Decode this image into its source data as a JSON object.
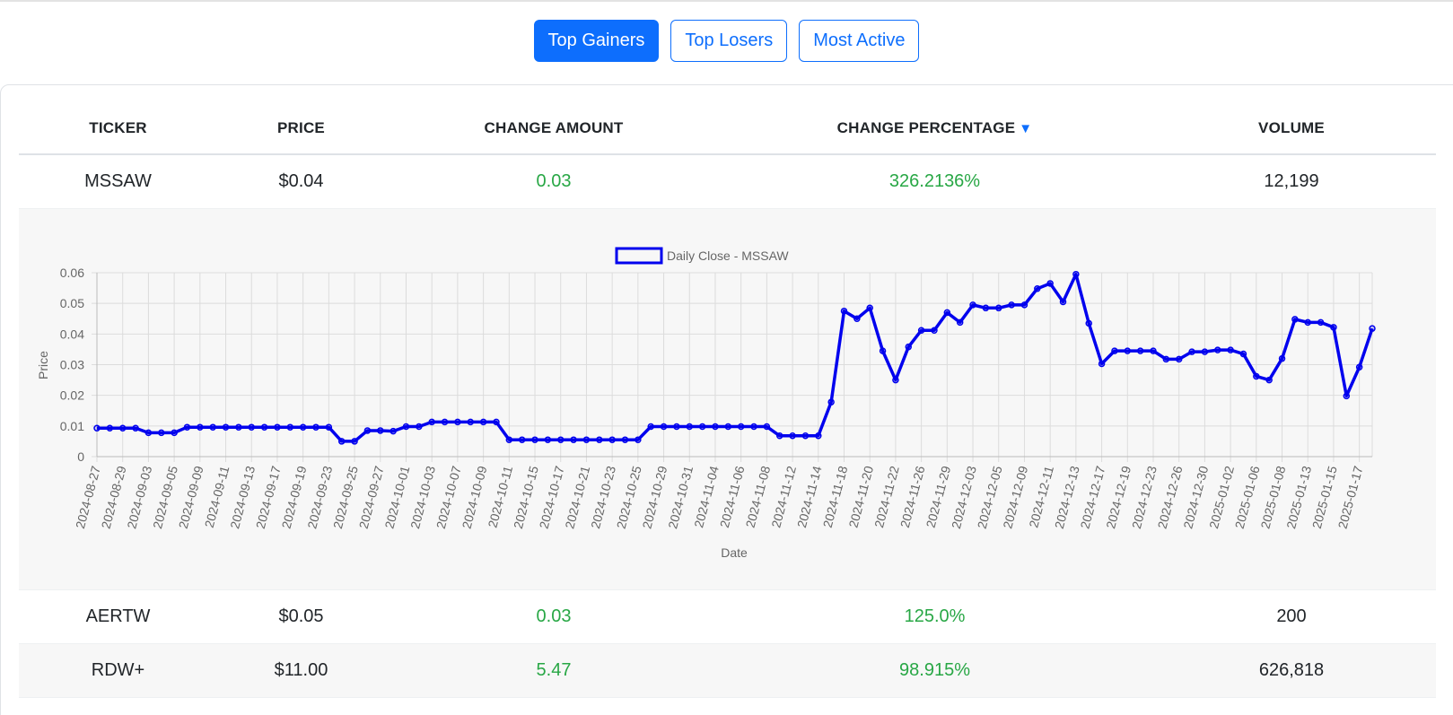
{
  "tabs": [
    {
      "label": "Top Gainers",
      "active": true
    },
    {
      "label": "Top Losers",
      "active": false
    },
    {
      "label": "Most Active",
      "active": false
    }
  ],
  "table": {
    "headers": {
      "ticker": "TICKER",
      "price": "PRICE",
      "change_amount": "CHANGE AMOUNT",
      "change_percentage": "CHANGE PERCENTAGE",
      "sort_indicator": "▼",
      "volume": "VOLUME"
    },
    "rows": [
      {
        "ticker": "MSSAW",
        "price": "$0.04",
        "change_amount": "0.03",
        "change_percentage": "326.2136%",
        "volume": "12,199"
      },
      {
        "ticker": "AERTW",
        "price": "$0.05",
        "change_amount": "0.03",
        "change_percentage": "125.0%",
        "volume": "200"
      },
      {
        "ticker": "RDW+",
        "price": "$11.00",
        "change_amount": "5.47",
        "change_percentage": "98.915%",
        "volume": "626,818"
      }
    ]
  },
  "colors": {
    "accent": "#0d6efd",
    "positive": "#28a745",
    "series_line": "#0000ee"
  },
  "chart_data": {
    "type": "line",
    "legend": "Daily Close - MSSAW",
    "xlabel": "Date",
    "ylabel": "Price",
    "ylim": [
      0,
      0.06
    ],
    "yticks": [
      "0",
      "0.01",
      "0.02",
      "0.03",
      "0.04",
      "0.05",
      "0.06"
    ],
    "grid": true,
    "x_tick_labels": [
      "2024-08-27",
      "2024-08-29",
      "2024-09-03",
      "2024-09-05",
      "2024-09-09",
      "2024-09-11",
      "2024-09-13",
      "2024-09-17",
      "2024-09-19",
      "2024-09-23",
      "2024-09-25",
      "2024-09-27",
      "2024-10-01",
      "2024-10-03",
      "2024-10-07",
      "2024-10-09",
      "2024-10-11",
      "2024-10-15",
      "2024-10-17",
      "2024-10-21",
      "2024-10-23",
      "2024-10-25",
      "2024-10-29",
      "2024-10-31",
      "2024-11-04",
      "2024-11-06",
      "2024-11-08",
      "2024-11-12",
      "2024-11-14",
      "2024-11-18",
      "2024-11-20",
      "2024-11-22",
      "2024-11-26",
      "2024-11-29",
      "2024-12-03",
      "2024-12-05",
      "2024-12-09",
      "2024-12-11",
      "2024-12-13",
      "2024-12-17",
      "2024-12-19",
      "2024-12-23",
      "2024-12-26",
      "2024-12-30",
      "2025-01-02",
      "2025-01-06",
      "2025-01-08",
      "2025-01-13",
      "2025-01-15",
      "2025-01-17"
    ],
    "series": [
      {
        "name": "Daily Close - MSSAW",
        "values": [
          0.0093,
          0.0093,
          0.0093,
          0.0093,
          0.0078,
          0.0078,
          0.0078,
          0.0096,
          0.0096,
          0.0096,
          0.0096,
          0.0096,
          0.0096,
          0.0096,
          0.0096,
          0.0096,
          0.0096,
          0.0096,
          0.0096,
          0.005,
          0.005,
          0.0085,
          0.0085,
          0.0083,
          0.0098,
          0.0098,
          0.0113,
          0.0113,
          0.0113,
          0.0113,
          0.0113,
          0.0113,
          0.0055,
          0.0055,
          0.0055,
          0.0055,
          0.0055,
          0.0055,
          0.0055,
          0.0055,
          0.0055,
          0.0055,
          0.0055,
          0.0098,
          0.0098,
          0.0098,
          0.0098,
          0.0098,
          0.0098,
          0.0098,
          0.0098,
          0.0098,
          0.0098,
          0.0068,
          0.0068,
          0.0068,
          0.0068,
          0.0178,
          0.0475,
          0.045,
          0.0485,
          0.0345,
          0.025,
          0.0358,
          0.0412,
          0.0412,
          0.047,
          0.0438,
          0.0495,
          0.0485,
          0.0485,
          0.0495,
          0.0495,
          0.0548,
          0.0565,
          0.0505,
          0.0595,
          0.0435,
          0.0303,
          0.0345,
          0.0345,
          0.0345,
          0.0345,
          0.0318,
          0.0318,
          0.0342,
          0.0342,
          0.0348,
          0.0348,
          0.0335,
          0.0262,
          0.025,
          0.032,
          0.0448,
          0.0438,
          0.0438,
          0.0422,
          0.0198,
          0.0292,
          0.0418
        ]
      }
    ]
  }
}
